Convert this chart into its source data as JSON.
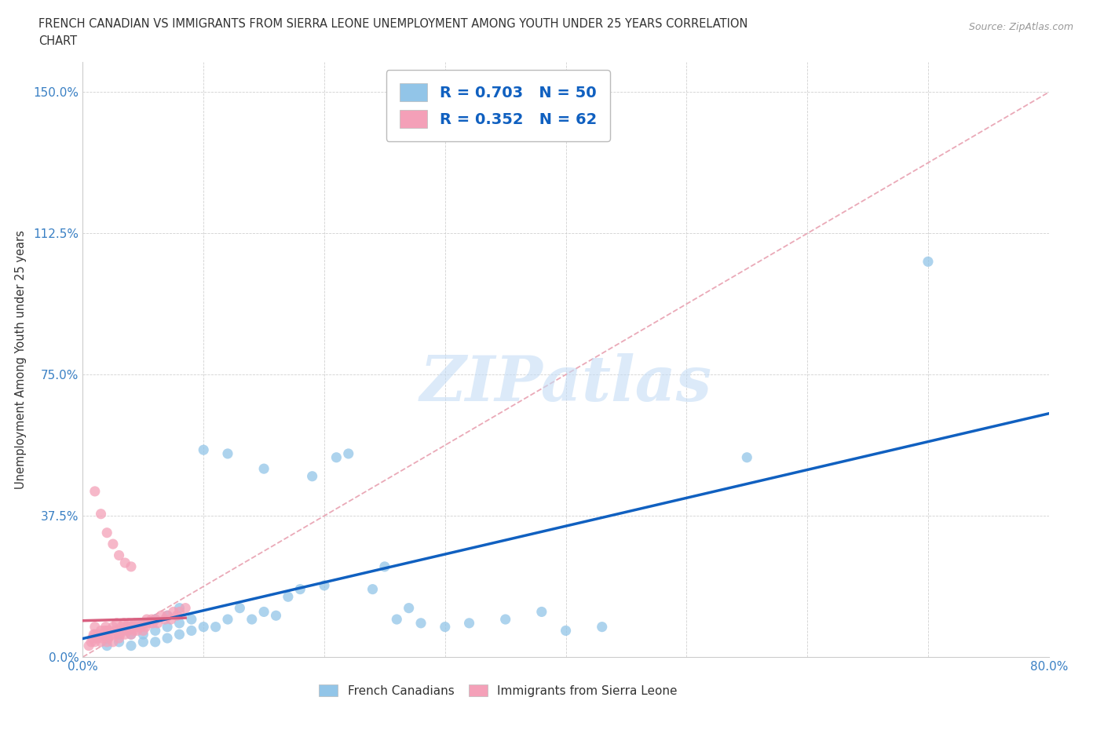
{
  "title_line1": "FRENCH CANADIAN VS IMMIGRANTS FROM SIERRA LEONE UNEMPLOYMENT AMONG YOUTH UNDER 25 YEARS CORRELATION",
  "title_line2": "CHART",
  "source_text": "Source: ZipAtlas.com",
  "ylabel": "Unemployment Among Youth under 25 years",
  "x_min": 0.0,
  "x_max": 0.8,
  "y_min": 0.0,
  "y_max": 1.58,
  "y_ticks": [
    0.0,
    0.375,
    0.75,
    1.125,
    1.5
  ],
  "y_tick_labels": [
    "0.0%",
    "37.5%",
    "75.0%",
    "112.5%",
    "150.0%"
  ],
  "R_blue": 0.703,
  "N_blue": 50,
  "R_pink": 0.352,
  "N_pink": 62,
  "blue_color": "#92c5e8",
  "pink_color": "#f4a0b8",
  "regression_blue_color": "#1060c0",
  "regression_pink_color": "#d86080",
  "diagonal_color": "#e8a0b0",
  "diagonal_linestyle": "--",
  "watermark_text": "ZIPatlas",
  "watermark_color": "#c5ddf5",
  "background_color": "#ffffff",
  "grid_color": "#cccccc",
  "tick_color": "#3a80c4",
  "title_color": "#333333",
  "legend_text_color": "#1060c0",
  "bottom_legend_color": "#333333",
  "blue_scatter_x": [
    0.02,
    0.02,
    0.03,
    0.03,
    0.04,
    0.04,
    0.04,
    0.05,
    0.05,
    0.05,
    0.06,
    0.06,
    0.06,
    0.07,
    0.07,
    0.07,
    0.08,
    0.08,
    0.08,
    0.09,
    0.09,
    0.1,
    0.1,
    0.11,
    0.12,
    0.12,
    0.13,
    0.14,
    0.15,
    0.15,
    0.16,
    0.17,
    0.18,
    0.19,
    0.2,
    0.21,
    0.22,
    0.24,
    0.25,
    0.26,
    0.27,
    0.28,
    0.3,
    0.32,
    0.35,
    0.38,
    0.4,
    0.43,
    0.55,
    0.7
  ],
  "blue_scatter_y": [
    0.03,
    0.05,
    0.04,
    0.06,
    0.03,
    0.06,
    0.08,
    0.04,
    0.06,
    0.09,
    0.04,
    0.07,
    0.1,
    0.05,
    0.08,
    0.11,
    0.06,
    0.09,
    0.13,
    0.07,
    0.1,
    0.08,
    0.55,
    0.08,
    0.1,
    0.54,
    0.13,
    0.1,
    0.12,
    0.5,
    0.11,
    0.16,
    0.18,
    0.48,
    0.19,
    0.53,
    0.54,
    0.18,
    0.24,
    0.1,
    0.13,
    0.09,
    0.08,
    0.09,
    0.1,
    0.12,
    0.07,
    0.08,
    0.53,
    1.05
  ],
  "pink_scatter_x": [
    0.005,
    0.007,
    0.008,
    0.009,
    0.01,
    0.01,
    0.01,
    0.012,
    0.013,
    0.015,
    0.015,
    0.016,
    0.017,
    0.018,
    0.019,
    0.02,
    0.02,
    0.02,
    0.021,
    0.022,
    0.023,
    0.025,
    0.025,
    0.026,
    0.027,
    0.028,
    0.03,
    0.03,
    0.031,
    0.032,
    0.033,
    0.034,
    0.035,
    0.036,
    0.037,
    0.038,
    0.039,
    0.04,
    0.041,
    0.042,
    0.043,
    0.044,
    0.045,
    0.046,
    0.048,
    0.05,
    0.051,
    0.052,
    0.053,
    0.055,
    0.057,
    0.058,
    0.06,
    0.062,
    0.065,
    0.068,
    0.07,
    0.073,
    0.075,
    0.078,
    0.08,
    0.085
  ],
  "pink_scatter_y": [
    0.03,
    0.04,
    0.05,
    0.06,
    0.04,
    0.06,
    0.08,
    0.05,
    0.06,
    0.04,
    0.07,
    0.05,
    0.06,
    0.07,
    0.08,
    0.04,
    0.06,
    0.07,
    0.05,
    0.07,
    0.06,
    0.04,
    0.08,
    0.06,
    0.07,
    0.09,
    0.05,
    0.07,
    0.06,
    0.08,
    0.07,
    0.09,
    0.06,
    0.08,
    0.07,
    0.09,
    0.08,
    0.06,
    0.08,
    0.07,
    0.09,
    0.08,
    0.07,
    0.09,
    0.08,
    0.07,
    0.09,
    0.08,
    0.1,
    0.09,
    0.1,
    0.09,
    0.1,
    0.09,
    0.11,
    0.1,
    0.11,
    0.1,
    0.12,
    0.11,
    0.12,
    0.13
  ],
  "pink_outlier_x": [
    0.01,
    0.015,
    0.02,
    0.025,
    0.03,
    0.035,
    0.04
  ],
  "pink_outlier_y": [
    0.44,
    0.38,
    0.33,
    0.3,
    0.27,
    0.25,
    0.24
  ]
}
